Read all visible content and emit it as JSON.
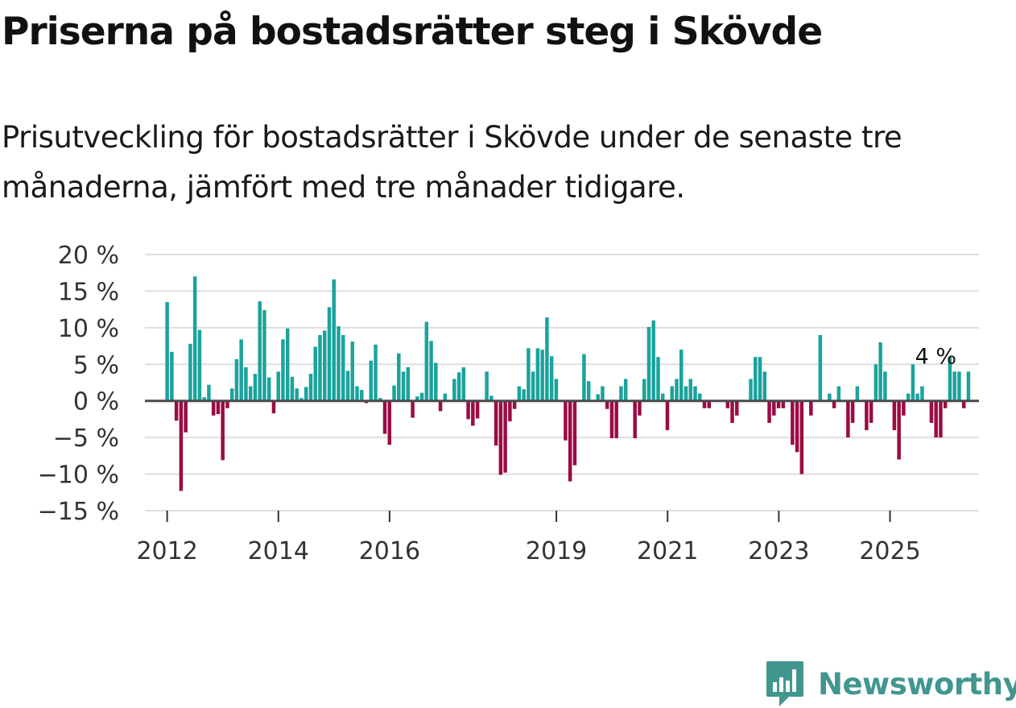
{
  "title": "Priserna på bostadsrätter steg i Skövde",
  "subtitle": "Prisutveckling för bostadsrätter i Skövde under de senaste tre månaderna, jämfört med tre månader tidigare.",
  "brand": "Newsworthy",
  "colors": {
    "positive": "#1ba39c",
    "negative": "#9b0b44",
    "brand": "#41978f"
  },
  "chart_data": {
    "type": "bar",
    "title": "",
    "xlabel": "",
    "ylabel": "",
    "ylim": [
      -15,
      20
    ],
    "xlim": [
      2011.6,
      2026.6
    ],
    "y_ticks": [
      20,
      15,
      10,
      5,
      0,
      -5,
      -10,
      -15
    ],
    "y_tick_labels": [
      "20 %",
      "15 %",
      "10 %",
      "5 %",
      "0 %",
      "−5 %",
      "−10 %",
      "−15 %"
    ],
    "x_ticks": [
      2012,
      2014,
      2016,
      2019,
      2021,
      2023,
      2025
    ],
    "x_tick_labels": [
      "2012",
      "2014",
      "2016",
      "2019",
      "2021",
      "2023",
      "2025"
    ],
    "start": 2012,
    "step": 0.0833,
    "values": [
      13.5,
      6.7,
      -2.7,
      -12.3,
      -4.3,
      7.8,
      17.0,
      9.7,
      0.5,
      2.2,
      -2.0,
      -1.8,
      -8.1,
      -1.0,
      1.7,
      5.7,
      8.4,
      4.6,
      2.0,
      3.7,
      13.6,
      12.4,
      3.2,
      -1.7,
      4.0,
      8.4,
      9.9,
      3.3,
      1.7,
      0.4,
      1.9,
      3.7,
      7.4,
      9.0,
      9.6,
      12.8,
      16.6,
      10.2,
      9.0,
      4.1,
      8.1,
      2.0,
      1.5,
      -0.3,
      5.5,
      7.7,
      0.4,
      -4.5,
      -6.0,
      2.1,
      6.5,
      4.0,
      4.6,
      -2.3,
      0.6,
      1.1,
      10.8,
      8.2,
      5.2,
      -1.4,
      1.0,
      0.0,
      3.0,
      3.9,
      4.6,
      -2.5,
      -3.4,
      -2.4,
      0.0,
      4.0,
      0.7,
      -6.1,
      -10.1,
      -9.8,
      -2.8,
      -1.1,
      2.0,
      1.6,
      7.2,
      4.0,
      7.2,
      7.0,
      11.4,
      6.1,
      3.0,
      0.0,
      -5.4,
      -11.0,
      -8.8,
      0.0,
      6.4,
      2.7,
      0.0,
      0.9,
      2.0,
      -1.1,
      -5.1,
      -5.1,
      2.0,
      3.0,
      0.0,
      -5.1,
      -2.0,
      3.0,
      10.1,
      11.0,
      6.0,
      1.0,
      -4.0,
      2.0,
      3.0,
      7.0,
      2.0,
      3.0,
      2.0,
      1.0,
      -1.0,
      -1.0,
      0.0,
      0.0,
      0.0,
      -1.0,
      -3.0,
      -2.0,
      0.0,
      0.0,
      3.0,
      6.0,
      6.0,
      4.0,
      -3.0,
      -2.0,
      -1.0,
      -1.0,
      0.0,
      -6.0,
      -7.0,
      -10.0,
      0.0,
      -2.0,
      0.0,
      9.0,
      0.0,
      1.0,
      -1.0,
      2.0,
      0.0,
      -5.0,
      -3.0,
      2.0,
      0.0,
      -4.0,
      -3.0,
      5.0,
      8.0,
      4.0,
      0.0,
      -4.0,
      -8.0,
      -2.0,
      1.0,
      5.0,
      1.0,
      2.0,
      0.0,
      -3.0,
      -5.0,
      -5.0,
      -1.0,
      6.0,
      4.0,
      4.0,
      -1.0,
      4.0
    ],
    "annotations": [
      {
        "text": "4 %",
        "x": 2025.91,
        "y": 4
      }
    ]
  }
}
